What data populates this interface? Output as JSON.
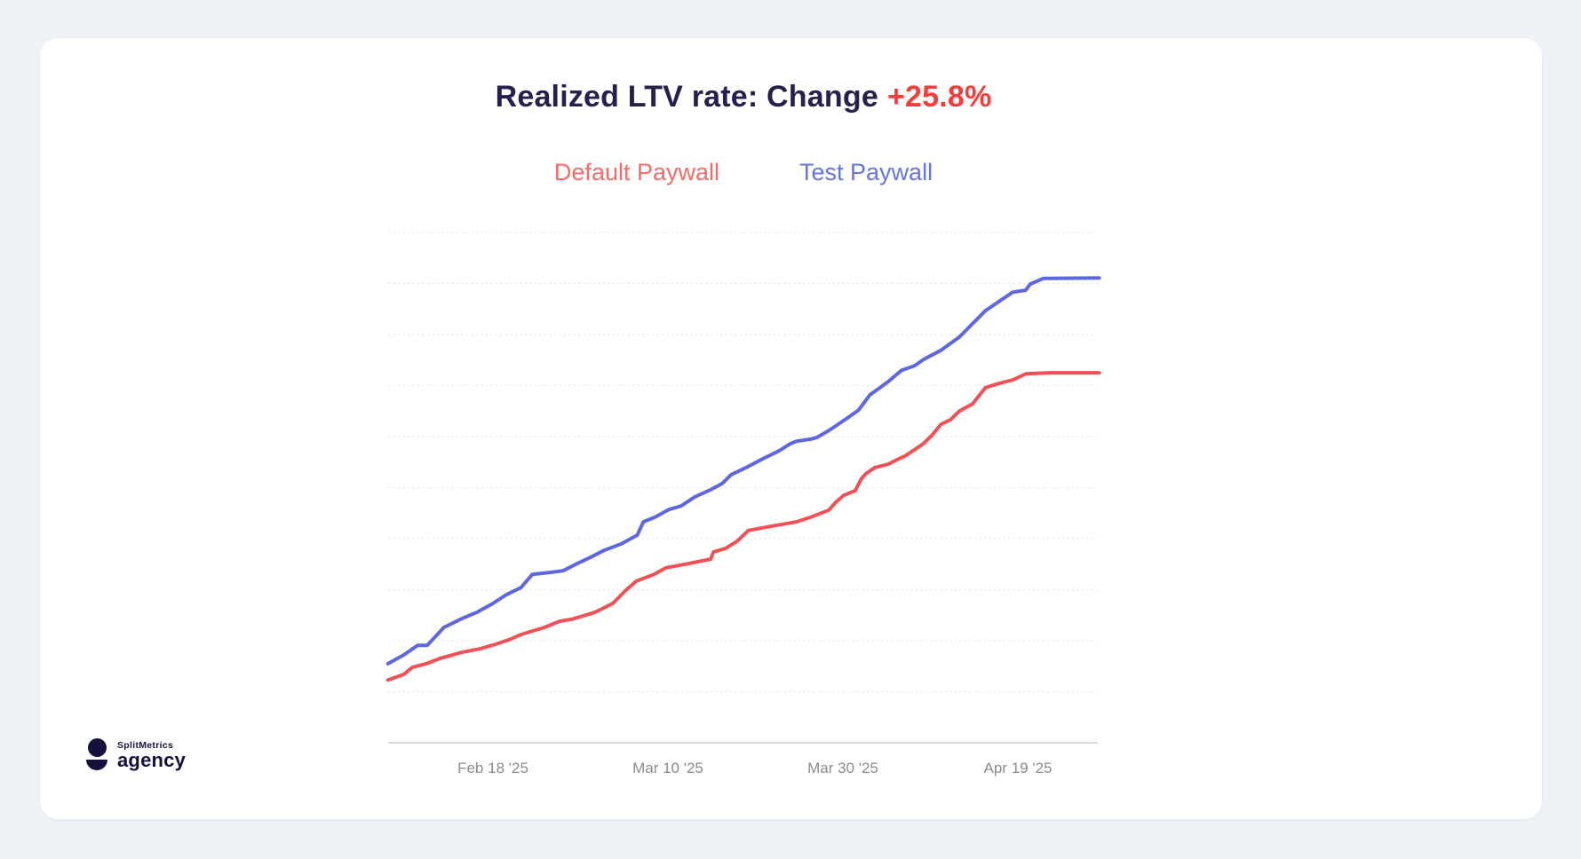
{
  "header": {
    "title_prefix": "Realized LTV rate: Change",
    "title_change": "+25.8%",
    "title_color": "#281f4e",
    "change_color": "#fb3a3a"
  },
  "legend": [
    {
      "label": "Default Paywall",
      "color": "#f56b6b"
    },
    {
      "label": "Test Paywall",
      "color": "#6573e3"
    }
  ],
  "logo": {
    "brand": "SplitMetrics",
    "sub": "agency",
    "color": "#14123c"
  },
  "chart_data": {
    "type": "line",
    "title": "Realized LTV rate: Change +25.8%",
    "change_pct": "+25.8%",
    "x_axis": {
      "tick_labels": [
        "Feb 18 '25",
        "Mar 10 '25",
        "Mar 30 '25",
        "Apr 19 '25"
      ],
      "tick_positions_days": [
        0,
        20,
        40,
        60
      ],
      "plot_range_days": [
        -12,
        69.3
      ],
      "units": "days relative to first tick (Feb 18 '25)"
    },
    "y_axis": {
      "tick_labels_visible": false,
      "units": "relative LTV (one dotted gridline = 1 unit)",
      "range": [
        0,
        10
      ],
      "grid_step": 1,
      "grid_style": "dotted"
    },
    "legend_position": "top-center",
    "final_values_relative": {
      "default_paywall": 7.25,
      "test_paywall": 9.11
    },
    "series": [
      {
        "name": "Default Paywall",
        "color": "#ef5157",
        "points": [
          [
            -12,
            1.23
          ],
          [
            -10.2,
            1.34
          ],
          [
            -9.2,
            1.48
          ],
          [
            -7.6,
            1.55
          ],
          [
            -6.1,
            1.65
          ],
          [
            -3.6,
            1.77
          ],
          [
            -1.5,
            1.84
          ],
          [
            0.3,
            1.93
          ],
          [
            2,
            2.03
          ],
          [
            3.2,
            2.12
          ],
          [
            4.5,
            2.19
          ],
          [
            5.9,
            2.26
          ],
          [
            7.6,
            2.38
          ],
          [
            9,
            2.42
          ],
          [
            10.4,
            2.49
          ],
          [
            11.7,
            2.56
          ],
          [
            13.7,
            2.73
          ],
          [
            15.2,
            2.99
          ],
          [
            16.4,
            3.17
          ],
          [
            18.3,
            3.29
          ],
          [
            19.8,
            3.43
          ],
          [
            22.3,
            3.51
          ],
          [
            24.9,
            3.6
          ],
          [
            25.2,
            3.74
          ],
          [
            26.6,
            3.81
          ],
          [
            27.9,
            3.95
          ],
          [
            29.2,
            4.16
          ],
          [
            31.7,
            4.24
          ],
          [
            33.7,
            4.3
          ],
          [
            34.7,
            4.33
          ],
          [
            36.3,
            4.42
          ],
          [
            38.4,
            4.56
          ],
          [
            39.1,
            4.7
          ],
          [
            40.1,
            4.85
          ],
          [
            41.4,
            4.94
          ],
          [
            42.1,
            5.17
          ],
          [
            42.6,
            5.27
          ],
          [
            43.6,
            5.39
          ],
          [
            45.2,
            5.46
          ],
          [
            46.2,
            5.55
          ],
          [
            47.2,
            5.63
          ],
          [
            49.2,
            5.86
          ],
          [
            50.2,
            6.03
          ],
          [
            51.2,
            6.24
          ],
          [
            52.3,
            6.33
          ],
          [
            53.3,
            6.5
          ],
          [
            54.8,
            6.64
          ],
          [
            56.3,
            6.96
          ],
          [
            57.8,
            7.04
          ],
          [
            59.4,
            7.11
          ],
          [
            60.9,
            7.23
          ],
          [
            63.7,
            7.25
          ],
          [
            69.3,
            7.25
          ]
        ]
      },
      {
        "name": "Test Paywall",
        "color": "#5d68e0",
        "points": [
          [
            -12,
            1.55
          ],
          [
            -10.2,
            1.72
          ],
          [
            -8.6,
            1.91
          ],
          [
            -7.5,
            1.91
          ],
          [
            -5.6,
            2.26
          ],
          [
            -3.6,
            2.43
          ],
          [
            -1.8,
            2.56
          ],
          [
            0,
            2.73
          ],
          [
            1.5,
            2.9
          ],
          [
            3.2,
            3.04
          ],
          [
            4.5,
            3.3
          ],
          [
            6.6,
            3.34
          ],
          [
            8,
            3.37
          ],
          [
            9.6,
            3.51
          ],
          [
            11.1,
            3.63
          ],
          [
            12.7,
            3.77
          ],
          [
            14.7,
            3.9
          ],
          [
            16.5,
            4.07
          ],
          [
            17.2,
            4.33
          ],
          [
            18.5,
            4.42
          ],
          [
            20.1,
            4.57
          ],
          [
            21.5,
            4.64
          ],
          [
            23.1,
            4.82
          ],
          [
            24.9,
            4.96
          ],
          [
            26.2,
            5.08
          ],
          [
            27.2,
            5.25
          ],
          [
            28.9,
            5.39
          ],
          [
            30.9,
            5.57
          ],
          [
            32.7,
            5.72
          ],
          [
            34,
            5.86
          ],
          [
            34.7,
            5.91
          ],
          [
            36.3,
            5.95
          ],
          [
            37,
            5.98
          ],
          [
            38.4,
            6.12
          ],
          [
            40.4,
            6.35
          ],
          [
            41.8,
            6.52
          ],
          [
            43.1,
            6.82
          ],
          [
            44.1,
            6.94
          ],
          [
            45.2,
            7.08
          ],
          [
            46.7,
            7.3
          ],
          [
            48.2,
            7.39
          ],
          [
            49.2,
            7.51
          ],
          [
            51.2,
            7.69
          ],
          [
            53.3,
            7.95
          ],
          [
            56.3,
            8.47
          ],
          [
            59.4,
            8.83
          ],
          [
            60.9,
            8.87
          ],
          [
            61.4,
            8.99
          ],
          [
            62.9,
            9.1
          ],
          [
            69.3,
            9.11
          ]
        ]
      }
    ]
  }
}
